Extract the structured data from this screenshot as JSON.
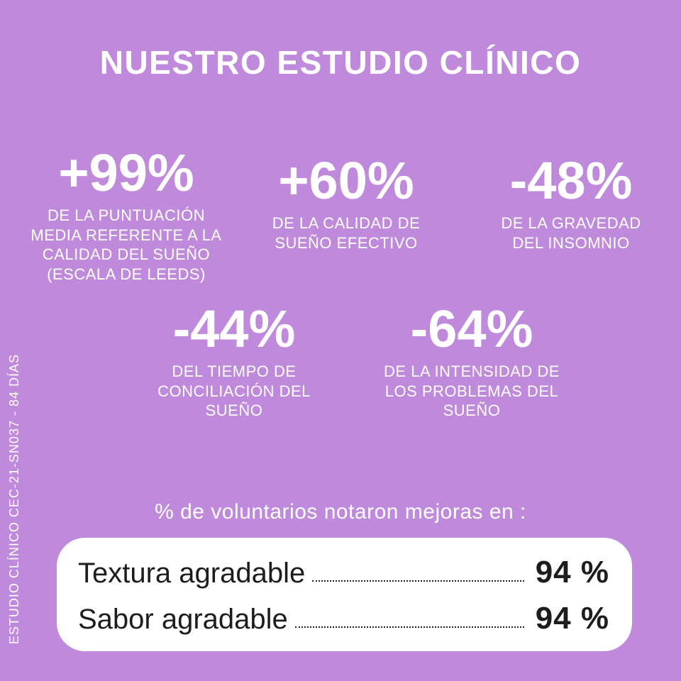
{
  "title": "NUESTRO ESTUDIO CLÍNICO",
  "side_label": "ESTUDIO CLÍNICO CEC-21-SN037 - 84 DÍAS",
  "colors": {
    "background": "#bf89dc",
    "text": "#ffffff",
    "card_background": "#ffffff",
    "card_text": "#1d1d1b"
  },
  "stats": [
    {
      "value": "+99%",
      "description": "DE LA PUNTUACIÓN\nMEDIA REFERENTE A LA\nCALIDAD DEL SUEÑO\n(ESCALA DE LEEDS)"
    },
    {
      "value": "+60%",
      "description": "DE LA CALIDAD DE\nSUEÑO EFECTIVO"
    },
    {
      "value": "-48%",
      "description": "DE LA GRAVEDAD\nDEL INSOMNIO"
    },
    {
      "value": "-44%",
      "description": "DEL TIEMPO DE\nCONCILIACIÓN DEL\nSUEÑO"
    },
    {
      "value": "-64%",
      "description": "DE LA INTENSIDAD DE\nLOS PROBLEMAS DEL\nSUEÑO"
    }
  ],
  "improvements": {
    "heading": "% de voluntarios notaron mejoras en :",
    "rows": [
      {
        "label": "Textura agradable",
        "value": "94 %"
      },
      {
        "label": "Sabor agradable",
        "value": "94 %"
      }
    ]
  }
}
